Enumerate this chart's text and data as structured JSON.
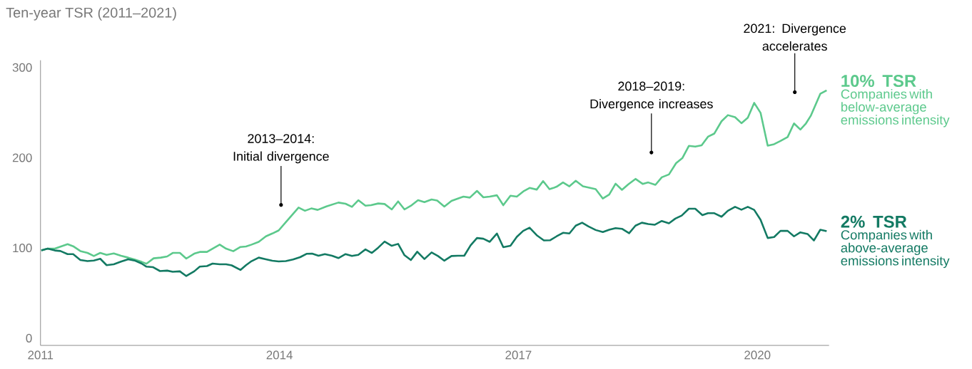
{
  "chart_data": {
    "type": "line",
    "title": "Ten-year TSR (2011–2021)",
    "xlim": [
      2011,
      2020.9
    ],
    "ylim": [
      -8,
      308
    ],
    "xticks": [
      2011,
      2014,
      2017,
      2020
    ],
    "yticks": [
      0,
      100,
      200,
      300
    ],
    "line_style": "solid",
    "series": [
      {
        "name": "Companies with below-average emissions intensity",
        "color": "#5cc98c",
        "x": [
          2011.01,
          2011.09,
          2011.18,
          2011.34,
          2011.41,
          2011.5,
          2011.59,
          2011.67,
          2011.75,
          2011.83,
          2011.92,
          2012.01,
          2012.1,
          2012.18,
          2012.27,
          2012.33,
          2012.42,
          2012.51,
          2012.59,
          2012.66,
          2012.75,
          2012.83,
          2012.93,
          2013.0,
          2013.09,
          2013.16,
          2013.25,
          2013.33,
          2013.42,
          2013.51,
          2013.58,
          2013.65,
          2013.74,
          2013.83,
          2013.91,
          2013.99,
          2014.08,
          2014.24,
          2014.32,
          2014.4,
          2014.48,
          2014.59,
          2014.74,
          2014.83,
          2014.91,
          2014.99,
          2015.08,
          2015.15,
          2015.24,
          2015.32,
          2015.41,
          2015.49,
          2015.57,
          2015.66,
          2015.74,
          2015.82,
          2015.91,
          2015.98,
          2016.07,
          2016.16,
          2016.24,
          2016.31,
          2016.39,
          2016.48,
          2016.56,
          2016.64,
          2016.73,
          2016.81,
          2016.9,
          2016.98,
          2017.07,
          2017.14,
          2017.23,
          2017.31,
          2017.39,
          2017.44,
          2017.48,
          2017.56,
          2017.64,
          2017.72,
          2017.81,
          2017.97,
          2018.06,
          2018.14,
          2018.22,
          2018.3,
          2018.38,
          2018.47,
          2018.56,
          2018.63,
          2018.72,
          2018.8,
          2018.89,
          2018.98,
          2019.06,
          2019.14,
          2019.22,
          2019.3,
          2019.38,
          2019.46,
          2019.55,
          2019.63,
          2019.72,
          2019.8,
          2019.88,
          2019.96,
          2020.04,
          2020.13,
          2020.21,
          2020.29,
          2020.38,
          2020.46,
          2020.54,
          2020.61,
          2020.67,
          2020.79,
          2020.87
        ],
        "values": [
          97.2,
          99.2,
          99.2,
          104.2,
          101.9,
          96.6,
          94.5,
          91.1,
          94.5,
          92.4,
          94,
          91.4,
          89.3,
          87.2,
          84.6,
          82.5,
          88.5,
          89.3,
          90.6,
          94.5,
          94.5,
          88.2,
          93.7,
          95.6,
          95.6,
          99.2,
          103.7,
          99.2,
          96.4,
          101.1,
          101.6,
          103.7,
          106.8,
          112.9,
          116,
          119.4,
          128.6,
          144.8,
          141.2,
          143.8,
          142.2,
          146.1,
          150.3,
          149,
          145.6,
          152.9,
          146.9,
          147.4,
          149.3,
          148.7,
          142.7,
          151.6,
          142.7,
          147.4,
          152.9,
          150.8,
          153.7,
          152.6,
          145.9,
          152.2,
          154.8,
          156.9,
          155.8,
          163.2,
          156.1,
          156.9,
          158.4,
          147.4,
          157.9,
          156.9,
          163.2,
          166.5,
          164.7,
          174.1,
          165.2,
          166.5,
          167.9,
          172.6,
          168.3,
          174.4,
          168.3,
          165.2,
          154.8,
          159.2,
          171.2,
          164.4,
          170.5,
          176.5,
          171,
          172.6,
          169.9,
          178.3,
          181.5,
          194,
          199.8,
          213.1,
          212.3,
          213.7,
          223.3,
          226.8,
          240.4,
          247.2,
          244.9,
          238.3,
          244.3,
          260.8,
          249.8,
          213.4,
          215,
          218.6,
          222.9,
          238,
          231.2,
          238,
          246.4,
          270.8,
          274.7
        ]
      },
      {
        "name": "Companies with above-average emissions intensity",
        "color": "#137a63",
        "x": [
          2011.01,
          2011.09,
          2011.18,
          2011.25,
          2011.34,
          2011.41,
          2011.5,
          2011.59,
          2011.67,
          2011.75,
          2011.83,
          2011.92,
          2012.01,
          2012.1,
          2012.18,
          2012.27,
          2012.33,
          2012.41,
          2012.5,
          2012.59,
          2012.66,
          2012.75,
          2012.83,
          2012.93,
          2013.0,
          2013.09,
          2013.16,
          2013.25,
          2013.33,
          2013.4,
          2013.51,
          2013.58,
          2013.65,
          2013.74,
          2013.83,
          2013.91,
          2013.99,
          2014.08,
          2014.17,
          2014.26,
          2014.34,
          2014.41,
          2014.49,
          2014.57,
          2014.66,
          2014.74,
          2014.83,
          2014.91,
          2014.99,
          2015.08,
          2015.16,
          2015.24,
          2015.32,
          2015.41,
          2015.49,
          2015.57,
          2015.65,
          2015.73,
          2015.82,
          2015.91,
          2015.99,
          2016.07,
          2016.16,
          2016.24,
          2016.32,
          2016.4,
          2016.48,
          2016.56,
          2016.64,
          2016.73,
          2016.81,
          2016.9,
          2016.98,
          2017.06,
          2017.14,
          2017.23,
          2017.32,
          2017.4,
          2017.48,
          2017.56,
          2017.64,
          2017.72,
          2017.8,
          2017.88,
          2017.97,
          2018.06,
          2018.14,
          2018.22,
          2018.3,
          2018.39,
          2018.47,
          2018.55,
          2018.63,
          2018.71,
          2018.8,
          2018.89,
          2018.97,
          2019.05,
          2019.14,
          2019.22,
          2019.31,
          2019.38,
          2019.46,
          2019.55,
          2019.63,
          2019.72,
          2019.8,
          2019.88,
          2019.96,
          2020.04,
          2020.13,
          2020.21,
          2020.29,
          2020.38,
          2020.46,
          2020.54,
          2020.63,
          2020.71,
          2020.79,
          2020.87
        ],
        "values": [
          97.2,
          99.2,
          97.2,
          96.6,
          93.2,
          93.2,
          86.7,
          85.4,
          86.1,
          88,
          80.9,
          81.9,
          84.8,
          87.5,
          86.1,
          82.7,
          79.3,
          78.8,
          74.4,
          74.9,
          73.6,
          74.1,
          68.9,
          74.1,
          79.3,
          79.9,
          82.7,
          81.9,
          81.9,
          80.7,
          75.6,
          80.9,
          85.4,
          89.3,
          87.5,
          85.9,
          85.1,
          85.4,
          87.2,
          89.8,
          93.5,
          93.7,
          91.4,
          93.2,
          91.4,
          88.8,
          93.2,
          91.1,
          92.4,
          98.4,
          94.5,
          100.3,
          107.1,
          102.4,
          104.5,
          91.9,
          86.6,
          95.8,
          87.7,
          95,
          91.1,
          85.9,
          91.1,
          91.4,
          91.4,
          102.9,
          111,
          110.2,
          106.8,
          116,
          100.8,
          102.4,
          112.3,
          118.9,
          122.5,
          114.1,
          108.4,
          108.6,
          112.9,
          116.8,
          116,
          124.7,
          128,
          123.9,
          119.9,
          117.6,
          120.2,
          122,
          121.2,
          116.3,
          124.7,
          128,
          126.5,
          125.7,
          129.9,
          127.3,
          132.5,
          135.9,
          143.5,
          143.5,
          136.4,
          138.5,
          138.5,
          134.6,
          141.2,
          145.6,
          142.4,
          145.6,
          142.2,
          131.2,
          111,
          112.1,
          118.9,
          118.9,
          112.9,
          117.3,
          115.5,
          108.2,
          120.2,
          118.6
        ]
      }
    ],
    "annotations": [
      {
        "text": "2013–2014: Initial divergence",
        "x": 2014.02,
        "y": 147.7
      },
      {
        "text": "2018–2019: Divergence increases",
        "x": 2018.67,
        "y": 205.8
      },
      {
        "text": "2021: Divergence accelerates",
        "x": 2020.47,
        "y": 272.6
      },
      "10% TSR",
      "2% TSR"
    ]
  }
}
